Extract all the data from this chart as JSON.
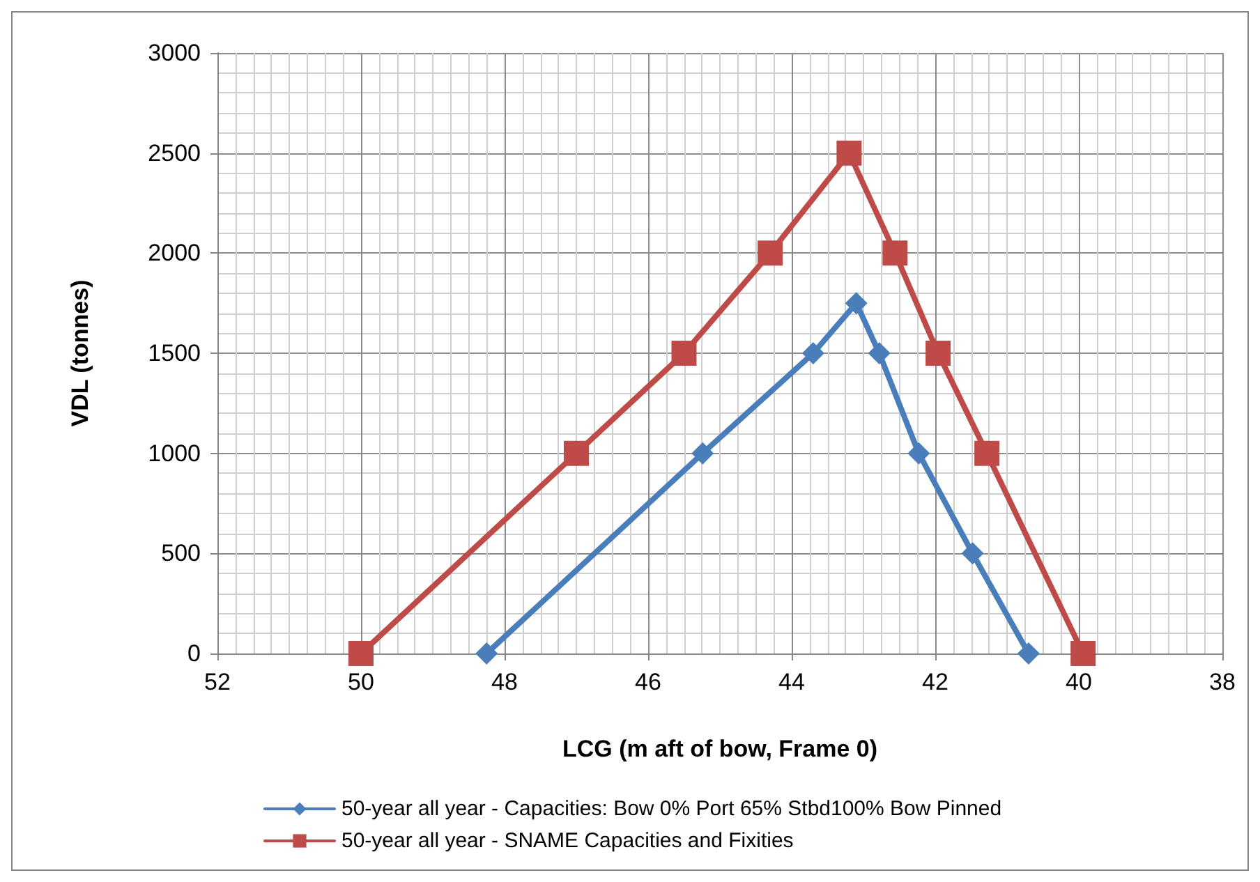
{
  "chart_data": {
    "type": "line",
    "xlabel": "LCG (m aft of bow, Frame 0)",
    "ylabel": "VDL (tonnes)",
    "xlim": [
      52,
      38
    ],
    "xticks": [
      52,
      50,
      48,
      46,
      44,
      42,
      40,
      38
    ],
    "ylim": [
      0,
      3000
    ],
    "yticks": [
      0,
      500,
      1000,
      1500,
      2000,
      2500,
      3000
    ],
    "grid": true,
    "legend": "bottom",
    "line_style": "solid",
    "series": [
      {
        "name": "50-year all year - Capacities: Bow 0% Port 65% Stbd100% Bow Pinned",
        "color": "#4a7ebb",
        "marker": "diamond",
        "x": [
          48.25,
          45.24,
          43.7,
          43.1,
          42.78,
          42.23,
          41.48,
          40.7
        ],
        "values": [
          0,
          1000,
          1500,
          1750,
          1500,
          1000,
          500,
          0
        ]
      },
      {
        "name": "50-year all year - SNAME Capacities and Fixities",
        "color": "#be4b48",
        "marker": "square",
        "x": [
          50,
          47,
          45.5,
          44.3,
          43.2,
          42.56,
          41.96,
          41.28,
          39.94
        ],
        "values": [
          0,
          1000,
          1500,
          2000,
          2500,
          2000,
          1500,
          1000,
          0
        ]
      }
    ]
  }
}
